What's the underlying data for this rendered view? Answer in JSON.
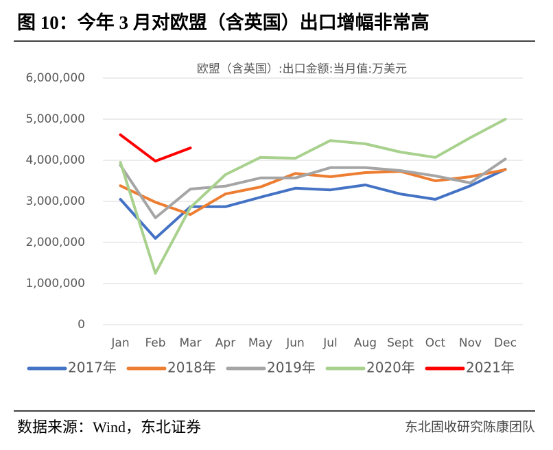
{
  "figure_title": "图 10：今年 3 月对欧盟（含英国）出口增幅非常高",
  "chart_data": {
    "type": "line",
    "title": "欧盟（含英国）:出口金额:当月值:万美元",
    "categories": [
      "Jan",
      "Feb",
      "Mar",
      "Apr",
      "May",
      "Jun",
      "Jul",
      "Aug",
      "Sept",
      "Oct",
      "Nov",
      "Dec"
    ],
    "series": [
      {
        "name": "2017年",
        "color": "#4472c4",
        "values": [
          3050000,
          2100000,
          2870000,
          2870000,
          3100000,
          3320000,
          3280000,
          3400000,
          3180000,
          3050000,
          3380000,
          3780000
        ]
      },
      {
        "name": "2018年",
        "color": "#ed7d31",
        "values": [
          3380000,
          2980000,
          2680000,
          3180000,
          3350000,
          3680000,
          3600000,
          3700000,
          3730000,
          3500000,
          3600000,
          3770000
        ]
      },
      {
        "name": "2019年",
        "color": "#a5a5a5",
        "values": [
          3880000,
          2600000,
          3300000,
          3370000,
          3570000,
          3570000,
          3820000,
          3820000,
          3750000,
          3620000,
          3450000,
          4030000
        ]
      },
      {
        "name": "2020年",
        "color": "#a9d18e",
        "values": [
          3950000,
          1250000,
          2850000,
          3650000,
          4070000,
          4050000,
          4480000,
          4400000,
          4200000,
          4070000,
          4550000,
          5000000
        ]
      },
      {
        "name": "2021年",
        "color": "#ff0000",
        "values": [
          4620000,
          3980000,
          4300000,
          null,
          null,
          null,
          null,
          null,
          null,
          null,
          null,
          null
        ]
      }
    ],
    "ylim": [
      0,
      6000000
    ],
    "yticks": [
      0,
      {
        "value": 1000000,
        "label": "1,000,000"
      },
      {
        "value": 2000000,
        "label": "2,000,000"
      },
      {
        "value": 3000000,
        "label": "3,000,000"
      },
      {
        "value": 4000000,
        "label": "4,000,000"
      },
      {
        "value": 5000000,
        "label": "5,000,000"
      },
      {
        "value": 6000000,
        "label": "6,000,000"
      }
    ],
    "grid": true,
    "legend": "bottom"
  },
  "source": "数据来源：Wind，东北证券",
  "watermark": "东北固收研究陈康团队"
}
